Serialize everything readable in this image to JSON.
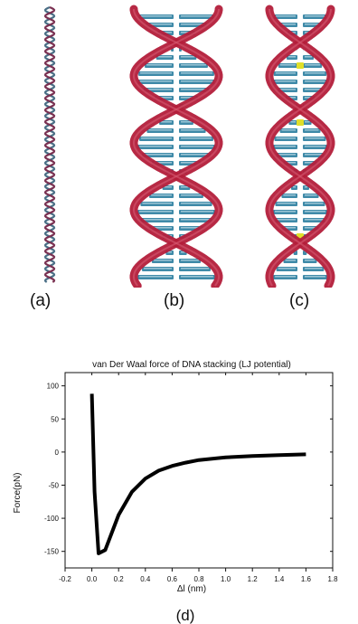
{
  "panels": [
    {
      "label": "(a)"
    },
    {
      "label": "(b)"
    },
    {
      "label": "(c)"
    }
  ],
  "colors": {
    "backbone": "#b31d3a",
    "base_pair": "#3f8aa8",
    "base_pair_light": "#9cc6d6",
    "highlight": "#e0df2a"
  },
  "icons": {
    "panel_a": "dna-helix-thin-icon",
    "panel_b": "dna-helix-ladder-icon",
    "panel_c": "dna-helix-ladder-highlight-icon"
  },
  "chart_panel_label": "(d)",
  "chart_data": {
    "type": "line",
    "title": "van Der Waal force of DNA stacking (LJ potential)",
    "xlabel": "Δl (nm)",
    "ylabel": "Force(pN)",
    "xlim": [
      -0.2,
      1.8
    ],
    "ylim": [
      -175,
      120
    ],
    "xticks": [
      "-0.2",
      "0.0",
      "0.2",
      "0.4",
      "0.6",
      "0.8",
      "1.0",
      "1.2",
      "1.4",
      "1.6",
      "1.8"
    ],
    "yticks": [
      "100",
      "50",
      "0",
      "-50",
      "-100",
      "-150"
    ],
    "x": [
      0.0,
      0.02,
      0.05,
      0.1,
      0.2,
      0.3,
      0.4,
      0.5,
      0.6,
      0.7,
      0.8,
      1.0,
      1.2,
      1.4,
      1.6
    ],
    "y": [
      88,
      -60,
      -153,
      -148,
      -95,
      -60,
      -40,
      -28,
      -21,
      -16,
      -12,
      -8,
      -6,
      -4.5,
      -3.5
    ]
  }
}
